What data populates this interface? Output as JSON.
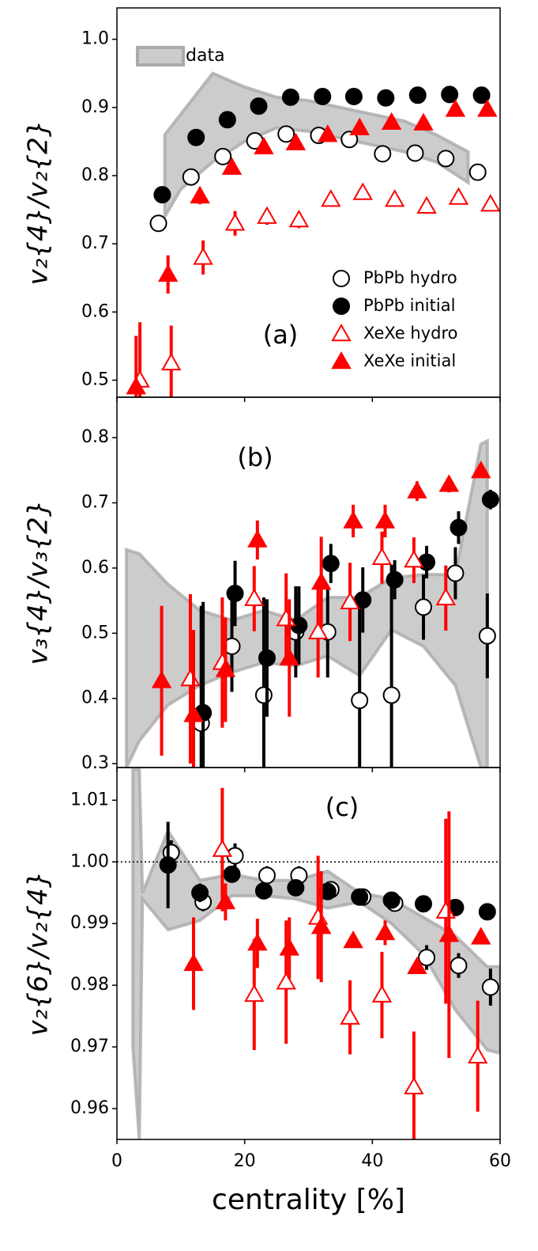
{
  "chart_data": [
    {
      "type": "scatter",
      "ylabel": "v₂{4}/v₂{2}",
      "annotation": "(a)",
      "xlim": [
        0,
        60
      ],
      "xticks": [
        0,
        20,
        40,
        60
      ],
      "ylim": [
        0.475,
        1.046
      ],
      "yticks": [
        0.5,
        0.6,
        0.7,
        0.8,
        0.9,
        {
          "value": 1,
          "label": "1.0"
        }
      ],
      "legend": "lower right",
      "band": {
        "name": "data",
        "color": "#aaaaaa",
        "x": [
          7.5,
          10,
          15,
          20,
          25,
          30,
          35,
          40,
          45,
          50,
          55
        ],
        "upper": [
          0.86,
          0.89,
          0.95,
          0.93,
          0.915,
          0.91,
          0.9,
          0.89,
          0.88,
          0.86,
          0.835
        ],
        "lower": [
          0.74,
          0.78,
          0.82,
          0.85,
          0.87,
          0.865,
          0.855,
          0.845,
          0.835,
          0.82,
          0.79
        ]
      },
      "series": [
        {
          "name": "PbPb hydro",
          "color": "#000000",
          "marker": "circle",
          "filled": false,
          "x": [
            6.5,
            11.6,
            16.6,
            21.6,
            26.5,
            31.6,
            36.4,
            41.6,
            46.7,
            51.5,
            56.5
          ],
          "values": [
            0.73,
            0.798,
            0.828,
            0.851,
            0.861,
            0.859,
            0.853,
            0.832,
            0.833,
            0.825,
            0.805
          ],
          "errors": [
            0.012,
            0.008,
            0.006,
            0.005,
            0.005,
            0.005,
            0.005,
            0.005,
            0.005,
            0.005,
            0.005
          ]
        },
        {
          "name": "PbPb initial",
          "color": "#000000",
          "marker": "circle",
          "filled": true,
          "x": [
            7.1,
            12.4,
            17.3,
            22.2,
            27.2,
            32.2,
            37.1,
            42.1,
            47.1,
            52.1,
            57.1
          ],
          "values": [
            0.772,
            0.856,
            0.882,
            0.902,
            0.915,
            0.916,
            0.916,
            0.914,
            0.918,
            0.919,
            0.918
          ],
          "errors": [
            0.005,
            0.005,
            0.005,
            0.005,
            0.005,
            0.005,
            0.005,
            0.005,
            0.005,
            0.005,
            0.005
          ]
        },
        {
          "name": "XeXe hydro",
          "color": "#ff0000",
          "marker": "triangle",
          "filled": false,
          "x": [
            3.6,
            8.5,
            13.5,
            18.5,
            23.5,
            28.5,
            33.5,
            38.5,
            43.5,
            48.5,
            53.5,
            58.5
          ],
          "values": [
            0.5,
            0.525,
            0.68,
            0.73,
            0.74,
            0.735,
            0.765,
            0.775,
            0.765,
            0.755,
            0.768,
            0.758
          ],
          "errors": [
            0.085,
            0.055,
            0.025,
            0.018,
            0.012,
            0.012,
            0.01,
            0.01,
            0.01,
            0.01,
            0.01,
            0.01
          ]
        },
        {
          "name": "XeXe initial",
          "color": "#ff0000",
          "marker": "triangle",
          "filled": true,
          "x": [
            3.0,
            8.0,
            13.0,
            18.0,
            23.0,
            28.0,
            33.0,
            38.0,
            43.0,
            48.0,
            53.0,
            58.0
          ],
          "values": [
            0.49,
            0.655,
            0.77,
            0.812,
            0.842,
            0.848,
            0.86,
            0.87,
            0.878,
            0.877,
            0.897,
            0.897
          ],
          "errors": [
            0.075,
            0.028,
            0.012,
            0.01,
            0.008,
            0.008,
            0.008,
            0.008,
            0.008,
            0.008,
            0.008,
            0.008
          ]
        }
      ]
    },
    {
      "type": "scatter",
      "ylabel": "v₃{4}/v₃{2}",
      "annotation": "(b)",
      "xlim": [
        0,
        60
      ],
      "xticks": [
        0,
        20,
        40,
        60
      ],
      "ylim": [
        0.294,
        0.862
      ],
      "yticks": [
        0.3,
        0.4,
        0.5,
        0.6,
        0.7,
        0.8
      ],
      "band": {
        "color": "#aaaaaa",
        "x": [
          1.5,
          3.5,
          8,
          13,
          18,
          23,
          28,
          33,
          38,
          43,
          48,
          53,
          57,
          58
        ],
        "upper": [
          0.628,
          0.622,
          0.575,
          0.535,
          0.52,
          0.535,
          0.52,
          0.555,
          0.555,
          0.585,
          0.59,
          0.59,
          0.79,
          0.795
        ],
        "lower": [
          0.294,
          0.335,
          0.39,
          0.42,
          0.44,
          0.455,
          0.45,
          0.465,
          0.435,
          0.505,
          0.48,
          0.42,
          0.294,
          0.294
        ]
      },
      "series": [
        {
          "color": "#000000",
          "marker": "circle",
          "filled": false,
          "x": [
            13.2,
            18,
            23,
            28,
            33,
            38,
            43,
            48,
            53,
            58
          ],
          "values": [
            0.362,
            0.48,
            0.405,
            0.502,
            0.502,
            0.397,
            0.405,
            0.54,
            0.592,
            0.496
          ],
          "errors": [
            0.18,
            0.07,
            0.15,
            0.07,
            0.07,
            0.15,
            0.2,
            0.05,
            0.04,
            0.065
          ]
        },
        {
          "color": "#000000",
          "marker": "circle",
          "filled": true,
          "x": [
            13.5,
            18.5,
            23.5,
            28.5,
            33.5,
            38.5,
            43.5,
            48.5,
            53.5,
            58.5
          ],
          "values": [
            0.378,
            0.561,
            0.462,
            0.512,
            0.607,
            0.551,
            0.582,
            0.609,
            0.662,
            0.705
          ],
          "errors": [
            0.17,
            0.05,
            0.09,
            0.06,
            0.03,
            0.05,
            0.03,
            0.025,
            0.025,
            0.015
          ]
        },
        {
          "color": "#ff0000",
          "marker": "triangle",
          "filled": false,
          "x": [
            11.5,
            16.5,
            21.5,
            26.5,
            31.5,
            36.5,
            41.5,
            46.5,
            51.5
          ],
          "values": [
            0.43,
            0.455,
            0.553,
            0.522,
            0.502,
            0.548,
            0.616,
            0.612,
            0.554
          ],
          "errors": [
            0.13,
            0.1,
            0.05,
            0.07,
            0.07,
            0.06,
            0.04,
            0.035,
            0.05
          ]
        },
        {
          "color": "#ff0000",
          "marker": "triangle",
          "filled": true,
          "x": [
            7,
            12,
            17,
            22,
            27,
            32,
            37,
            42,
            47,
            52,
            57
          ],
          "values": [
            0.427,
            0.375,
            0.444,
            0.643,
            0.462,
            0.578,
            0.672,
            0.672,
            0.718,
            0.728,
            0.749
          ],
          "errors": [
            0.115,
            0.13,
            0.08,
            0.03,
            0.09,
            0.07,
            0.025,
            0.025,
            0.015,
            0.012,
            0.01
          ]
        }
      ]
    },
    {
      "type": "scatter",
      "ylabel": "v₂{6}/v₂{4}",
      "annotation": "(c)",
      "xlabel": "centrality [%]",
      "xlim": [
        0,
        60
      ],
      "xticks": [
        0,
        20,
        40,
        60
      ],
      "ylim": [
        0.955,
        1.0153
      ],
      "yticks": [
        0.96,
        0.97,
        0.98,
        0.99,
        {
          "value": 1,
          "label": "1.00"
        },
        1.01
      ],
      "hline": 1,
      "band": {
        "color": "#aaaaaa",
        "x": [
          2.5,
          3.5,
          4,
          8,
          13,
          18,
          23,
          28,
          33,
          38,
          43,
          48,
          53,
          58,
          60
        ],
        "upper": [
          1.015,
          1.015,
          0.995,
          1.005,
          0.997,
          0.998,
          0.997,
          0.997,
          0.9985,
          0.995,
          0.994,
          0.991,
          0.988,
          0.983,
          0.983
        ],
        "lower": [
          0.97,
          0.955,
          0.994,
          0.989,
          0.9905,
          0.9945,
          0.9945,
          0.994,
          0.9925,
          0.9935,
          0.99,
          0.985,
          0.976,
          0.9695,
          0.969
        ]
      },
      "series": [
        {
          "color": "#000000",
          "marker": "circle",
          "filled": false,
          "x": [
            8.5,
            13.5,
            18.5,
            23.5,
            28.5,
            33.5,
            38.5,
            43.5,
            48.5,
            53.5,
            58.5
          ],
          "values": [
            1.0015,
            0.9935,
            1.001,
            0.9978,
            0.9978,
            0.9955,
            0.9943,
            0.9933,
            0.9845,
            0.9832,
            0.9797
          ],
          "errors": [
            0.002,
            0.0015,
            0.002,
            0.0015,
            0.0015,
            0.001,
            0.001,
            0.001,
            0.002,
            0.002,
            0.003
          ]
        },
        {
          "color": "#000000",
          "marker": "circle",
          "filled": true,
          "x": [
            8,
            13,
            18,
            23,
            28,
            33,
            38,
            43,
            48,
            53,
            58
          ],
          "values": [
            0.9995,
            0.995,
            0.998,
            0.9953,
            0.9958,
            0.9952,
            0.9943,
            0.9938,
            0.9932,
            0.9926,
            0.9919
          ],
          "errors": [
            0.007,
            0.0015,
            0.001,
            0.001,
            0.001,
            0.001,
            0.001,
            0.001,
            0.001,
            0.001,
            0.001
          ]
        },
        {
          "color": "#ff0000",
          "marker": "triangle",
          "filled": false,
          "x": [
            16.5,
            21.5,
            26.5,
            31.5,
            36.5,
            41.5,
            46.5,
            51.5,
            56.5
          ],
          "values": [
            1.002,
            0.9785,
            0.9805,
            0.991,
            0.9748,
            0.9784,
            0.9635,
            0.992,
            0.9685
          ],
          "errors": [
            0.01,
            0.009,
            0.01,
            0.01,
            0.006,
            0.007,
            0.009,
            0.015,
            0.009
          ]
        },
        {
          "color": "#ff0000",
          "marker": "triangle",
          "filled": true,
          "x": [
            12,
            17,
            22,
            27,
            32,
            37,
            42,
            47,
            52,
            57
          ],
          "values": [
            0.9835,
            0.9935,
            0.9868,
            0.986,
            0.9895,
            0.9872,
            0.9885,
            0.983,
            0.9882,
            0.9878
          ],
          "errors": [
            0.0075,
            0.003,
            0.004,
            0.005,
            0.009,
            0.001,
            0.002,
            0.001,
            0.02,
            0.001
          ]
        }
      ]
    }
  ]
}
